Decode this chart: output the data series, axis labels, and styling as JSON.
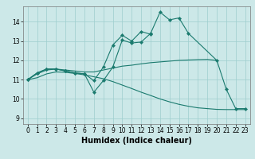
{
  "title": "",
  "xlabel": "Humidex (Indice chaleur)",
  "xlim": [
    -0.5,
    23.5
  ],
  "ylim": [
    8.7,
    14.8
  ],
  "yticks": [
    9,
    10,
    11,
    12,
    13,
    14
  ],
  "xticks": [
    0,
    1,
    2,
    3,
    4,
    5,
    6,
    7,
    8,
    9,
    10,
    11,
    12,
    13,
    14,
    15,
    16,
    17,
    18,
    19,
    20,
    21,
    22,
    23
  ],
  "bg_color": "#cce8e8",
  "line_color": "#1a7a6e",
  "line1_x": [
    0,
    1,
    2,
    3,
    4,
    5,
    6,
    7,
    8,
    9,
    10,
    11,
    12,
    13,
    14,
    15,
    16,
    17,
    20,
    21,
    22,
    23
  ],
  "line1_y": [
    11.0,
    11.35,
    11.55,
    11.55,
    11.45,
    11.35,
    11.3,
    10.35,
    10.95,
    11.65,
    13.05,
    12.9,
    12.95,
    13.4,
    14.5,
    14.1,
    14.2,
    13.4,
    12.0,
    10.5,
    9.5,
    9.5
  ],
  "line2_x": [
    0,
    1,
    2,
    3,
    4,
    5,
    6,
    7,
    8,
    9,
    10,
    11,
    12,
    13
  ],
  "line2_y": [
    11.0,
    11.35,
    11.55,
    11.55,
    11.45,
    11.35,
    11.3,
    10.95,
    11.65,
    12.8,
    13.3,
    13.0,
    13.5,
    13.35
  ],
  "line3_x": [
    0,
    1,
    2,
    3,
    4,
    5,
    6,
    7,
    8,
    9,
    10,
    11,
    12,
    13,
    14,
    15,
    16,
    17,
    18,
    19,
    20
  ],
  "line3_y": [
    11.0,
    11.3,
    11.5,
    11.55,
    11.5,
    11.45,
    11.4,
    11.4,
    11.5,
    11.6,
    11.7,
    11.75,
    11.82,
    11.88,
    11.92,
    11.96,
    12.0,
    12.02,
    12.04,
    12.05,
    12.0
  ],
  "line4_x": [
    0,
    1,
    2,
    3,
    4,
    5,
    6,
    7,
    8,
    9,
    10,
    11,
    12,
    13,
    14,
    15,
    16,
    17,
    18,
    19,
    20,
    21,
    22,
    23
  ],
  "line4_y": [
    11.0,
    11.1,
    11.3,
    11.4,
    11.38,
    11.32,
    11.25,
    11.15,
    11.05,
    10.9,
    10.72,
    10.54,
    10.35,
    10.18,
    10.0,
    9.85,
    9.72,
    9.62,
    9.54,
    9.5,
    9.46,
    9.45,
    9.45,
    9.45
  ]
}
